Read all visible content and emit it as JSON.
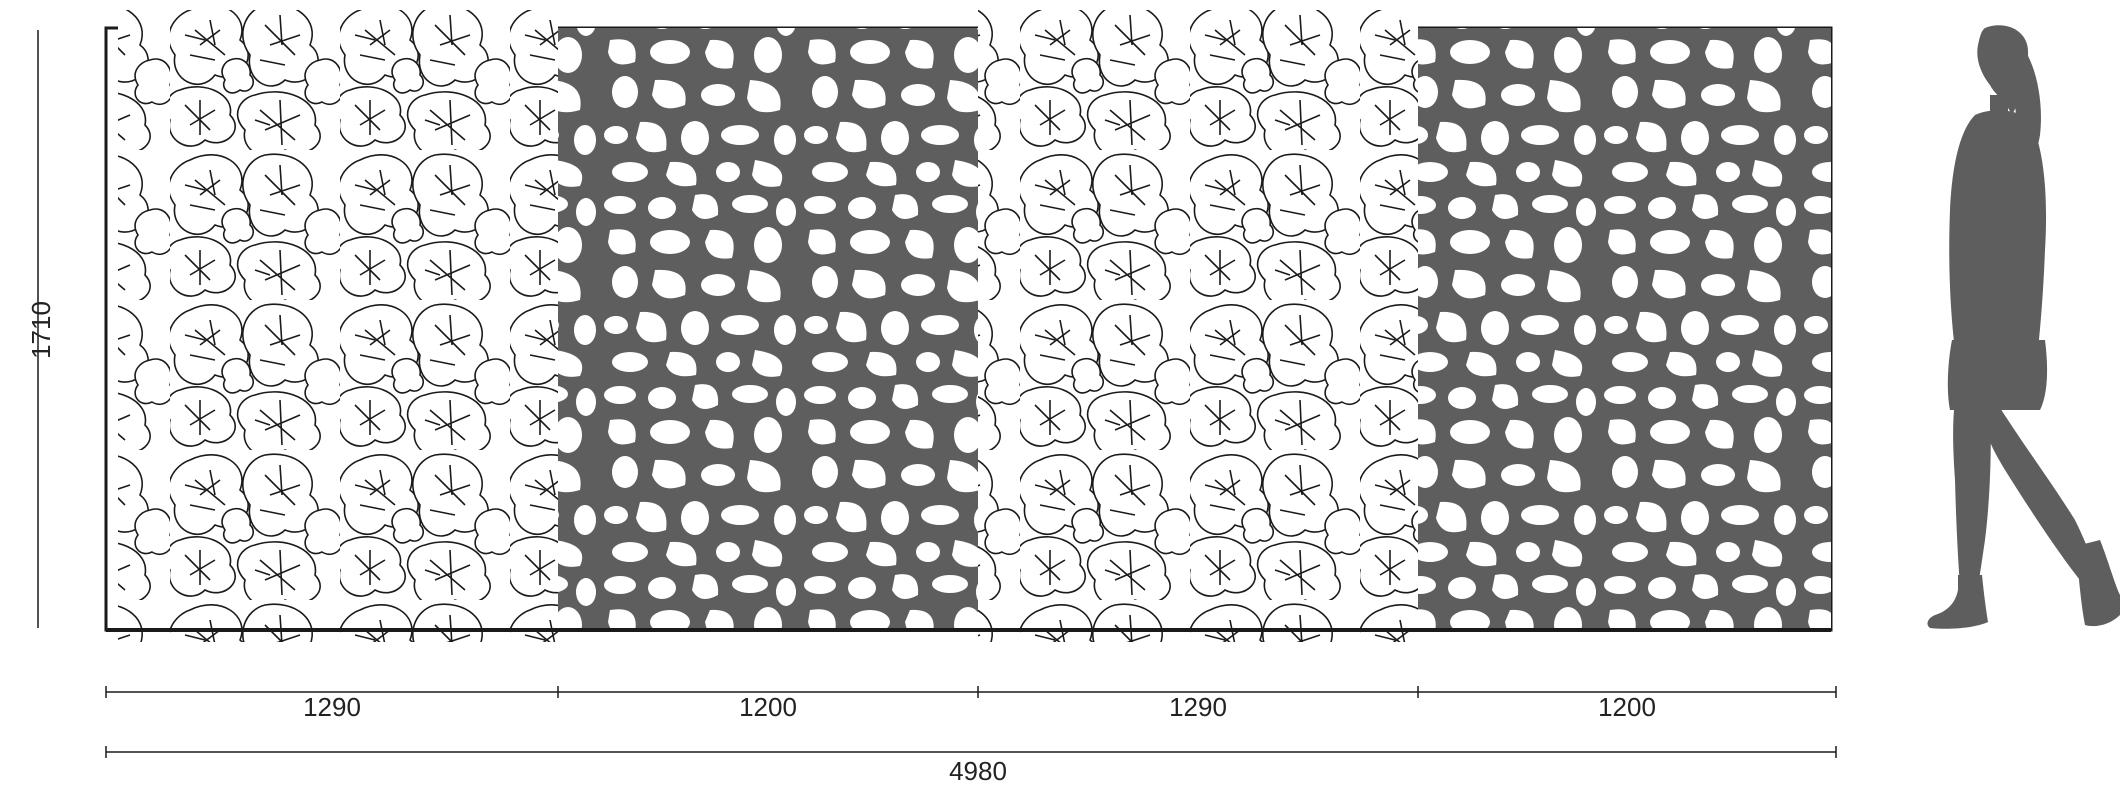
{
  "dimensions": {
    "height": "1710",
    "segments": [
      "1290",
      "1200",
      "1290",
      "1200"
    ],
    "total": "4980"
  },
  "panels": [
    {
      "pattern": "leaf-pattern",
      "width_mm": 1290
    },
    {
      "pattern": "pebble-pattern",
      "width_mm": 1200
    },
    {
      "pattern": "leaf-pattern",
      "width_mm": 1290
    },
    {
      "pattern": "pebble-pattern",
      "width_mm": 1200
    }
  ],
  "panel_height_mm": 1710,
  "colors": {
    "panel_fill": "#5e5e5e",
    "hole_fill": "#ffffff",
    "line": "#1a1a1a",
    "silhouette": "#5e5e5e"
  },
  "icons": {
    "figure": "person-silhouette-icon"
  }
}
